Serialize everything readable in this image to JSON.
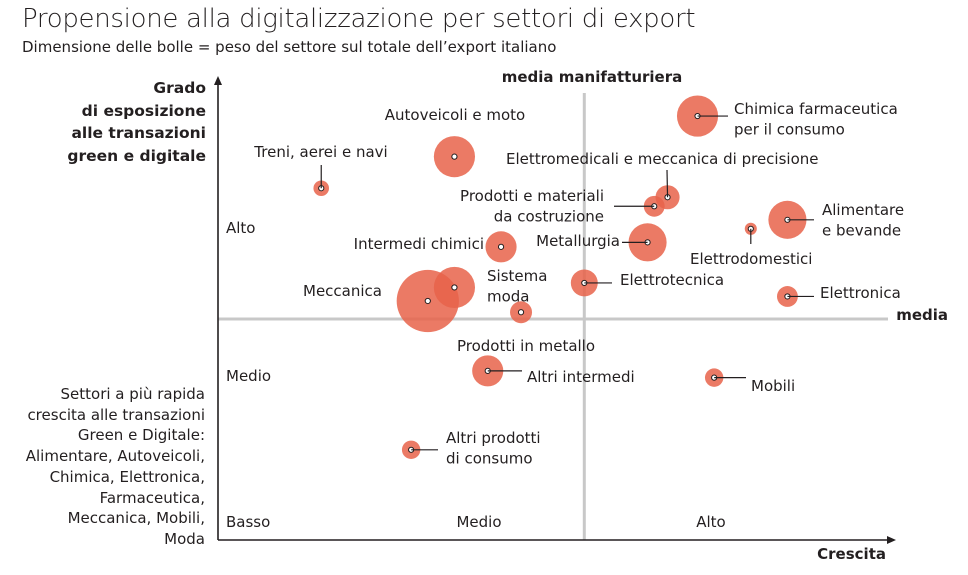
{
  "chart_data": {
    "type": "scatter",
    "title": "Propensione alla digitalizzazione per settori di export",
    "subtitle": "Dimensione delle bolle = peso del settore sul totale dell’export italiano",
    "ylabel": [
      "Grado",
      "di esposizione",
      "alle transazioni",
      "green e digitale"
    ],
    "xlabel": "Crescita",
    "xlim": [
      0,
      100
    ],
    "ylim": [
      0,
      100
    ],
    "x_ticks": [
      "Medio",
      "Alto"
    ],
    "y_ticks": [
      "Alto",
      "Medio",
      "Basso"
    ],
    "reference_lines": {
      "vertical": {
        "label": "media manifatturiera",
        "x": 55
      },
      "horizontal": {
        "label": "media",
        "y": 49
      }
    },
    "note": [
      "Settori a più rapida",
      "crescita alle transazioni",
      "Green e Digitale:",
      "Alimentare, Autoveicoli,",
      "Chimica, Elettronica,",
      "Farmaceutica,",
      "Meccanica, Mobili,",
      "Moda"
    ],
    "series": [
      {
        "name": "Treni, aerei e navi",
        "x": 15.5,
        "y": 78,
        "size": 0.5
      },
      {
        "name": "Autoveicoli e moto",
        "x": 35.5,
        "y": 85,
        "size": 3.5
      },
      {
        "name": "Chimica farmaceutica per il consumo",
        "x": 72,
        "y": 94,
        "size": 3.5
      },
      {
        "name": "Elettromedicali e meccanica di precisione",
        "x": 67.5,
        "y": 76,
        "size": 1.2
      },
      {
        "name": "Prodotti e materiali da costruzione",
        "x": 65.5,
        "y": 74,
        "size": 0.9
      },
      {
        "name": "Intermedi chimici",
        "x": 42.5,
        "y": 65,
        "size": 2.0
      },
      {
        "name": "Metallurgia",
        "x": 64.5,
        "y": 66,
        "size": 3.0
      },
      {
        "name": "Alimentare e bevande",
        "x": 85.5,
        "y": 71,
        "size": 3.0
      },
      {
        "name": "Elettrodomestici",
        "x": 80,
        "y": 69,
        "size": 0.3
      },
      {
        "name": "Sistema moda",
        "x": 35.5,
        "y": 56,
        "size": 3.5
      },
      {
        "name": "Meccanica",
        "x": 31.5,
        "y": 53,
        "size": 8.0
      },
      {
        "name": "Elettrotecnica",
        "x": 55,
        "y": 57,
        "size": 1.5
      },
      {
        "name": "Elettronica",
        "x": 85.5,
        "y": 54,
        "size": 0.9
      },
      {
        "name": "Prodotti in metallo",
        "x": 45.5,
        "y": 50.5,
        "size": 1.0
      },
      {
        "name": "Altri intermedi",
        "x": 40.5,
        "y": 37.5,
        "size": 2.0
      },
      {
        "name": "Mobili",
        "x": 74.5,
        "y": 36,
        "size": 0.7
      },
      {
        "name": "Altri prodotti di consumo",
        "x": 29,
        "y": 20,
        "size": 0.7
      }
    ],
    "labels": [
      {
        "lines": [
          "Treni, aerei e navi"
        ]
      },
      {
        "lines": [
          "Autoveicoli e moto"
        ]
      },
      {
        "lines": [
          "Chimica farmaceutica",
          "per il consumo"
        ]
      },
      {
        "lines": [
          "Elettromedicali e meccanica di precisione"
        ]
      },
      {
        "lines": [
          "Prodotti e materiali",
          "da costruzione"
        ]
      },
      {
        "lines": [
          "Intermedi chimici"
        ]
      },
      {
        "lines": [
          "Metallurgia"
        ]
      },
      {
        "lines": [
          "Alimentare",
          "e bevande"
        ]
      },
      {
        "lines": [
          "Elettrodomestici"
        ]
      },
      {
        "lines": [
          "Sistema",
          "moda"
        ]
      },
      {
        "lines": [
          "Meccanica"
        ]
      },
      {
        "lines": [
          "Elettrotecnica"
        ]
      },
      {
        "lines": [
          "Elettronica"
        ]
      },
      {
        "lines": [
          "Prodotti in metallo"
        ]
      },
      {
        "lines": [
          "Altri intermedi"
        ]
      },
      {
        "lines": [
          "Mobili"
        ]
      },
      {
        "lines": [
          "Altri prodotti",
          "di consumo"
        ]
      }
    ],
    "colors": {
      "bubble": "#e8634a",
      "bubble_overlap": "#e23e2b",
      "ref_line": "#c8c8c8",
      "axis": "#231f20",
      "text": "#231f20"
    }
  }
}
